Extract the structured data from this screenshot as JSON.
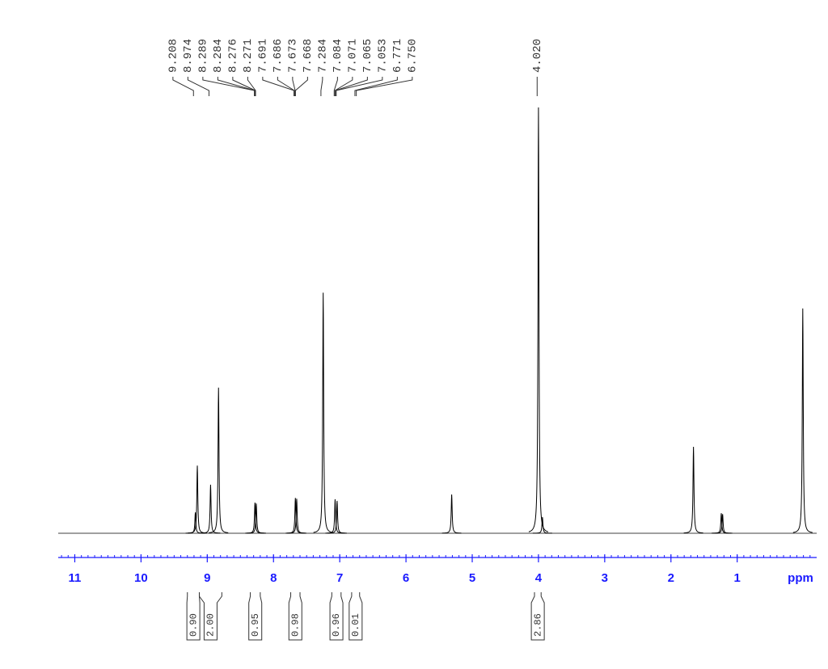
{
  "chart_data": {
    "type": "spectrum",
    "x_label": "ppm",
    "xlim": [
      11.25,
      -0.2
    ],
    "ylim": [
      0,
      100
    ],
    "xticks": [
      11,
      10,
      9,
      8,
      7,
      6,
      5,
      4,
      3,
      2,
      1
    ],
    "color": "#000000",
    "axis_color": "#1a1aff",
    "x": [
      9.18,
      9.15,
      8.95,
      8.83,
      8.28,
      8.26,
      7.67,
      7.65,
      7.25,
      7.07,
      7.04,
      5.31,
      4.0,
      3.94,
      1.66,
      1.24,
      1.22,
      0.01
    ],
    "values": [
      4.9,
      15.9,
      11.4,
      34.2,
      7.2,
      7.0,
      8.3,
      8.1,
      56.5,
      8.0,
      7.6,
      9.1,
      100,
      3.8,
      20.3,
      4.7,
      4.5,
      52.8
    ],
    "peak_labels": [
      9.208,
      8.974,
      8.289,
      8.284,
      8.276,
      8.271,
      7.691,
      7.686,
      7.673,
      7.668,
      7.284,
      7.084,
      7.071,
      7.065,
      7.053,
      6.771,
      {
        "value": 6.75,
        "label": "6.750"
      },
      {
        "value": 4.02,
        "label": "4.020"
      }
    ],
    "integrals": [
      {
        "range": [
          9.3,
          9.12
        ],
        "value": 0.9,
        "label": "0.90"
      },
      {
        "range": [
          9.12,
          8.78
        ],
        "value": 2,
        "label": "2.00"
      },
      {
        "range": [
          8.35,
          8.2
        ],
        "value": 0.95
      },
      {
        "range": [
          7.74,
          7.6
        ],
        "value": 0.98
      },
      {
        "range": [
          7.12,
          6.98
        ],
        "value": 0.96
      },
      {
        "range": [
          6.82,
          6.7
        ],
        "value": 0.01
      },
      {
        "range": [
          4.06,
          3.96
        ],
        "value": 2.86
      }
    ]
  }
}
